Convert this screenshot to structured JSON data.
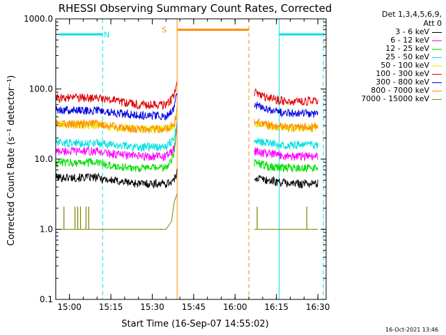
{
  "chart_data": {
    "type": "line",
    "title": "RHESSI Observing Summary Count Rates, Corrected",
    "ylabel": "Corrected Count Rate (s⁻¹ detector⁻¹)",
    "xlabel": "Start Time (16-Sep-07 14:55:02)",
    "y_scale": "log",
    "ylim": [
      0.1,
      1000
    ],
    "xlim": [
      "14:55:02",
      "16:33:00"
    ],
    "y_ticks": [
      {
        "value": 1000,
        "label": "1000.0"
      },
      {
        "value": 100,
        "label": "100.0"
      },
      {
        "value": 10,
        "label": "10.0"
      },
      {
        "value": 1,
        "label": "1.0"
      },
      {
        "value": 0.1,
        "label": "0.1"
      }
    ],
    "x_ticks": [
      {
        "value": "15:00",
        "label": "15:00"
      },
      {
        "value": "15:15",
        "label": "15:15"
      },
      {
        "value": "15:30",
        "label": "15:30"
      },
      {
        "value": "15:45",
        "label": "15:45"
      },
      {
        "value": "16:00",
        "label": "16:00"
      },
      {
        "value": "16:15",
        "label": "16:15"
      },
      {
        "value": "16:30",
        "label": "16:30"
      }
    ],
    "legend_header": [
      "Det 1,3,4,5,6,9,",
      "Att 0"
    ],
    "legend_position": "right",
    "gaps": [
      [
        "15:39",
        "16:07"
      ]
    ],
    "series": [
      {
        "name": "3 - 6 keV",
        "color": "#000000",
        "x": [
          "14:55",
          "15:10",
          "15:15",
          "15:25",
          "15:35",
          "15:38",
          "15:39",
          "16:07",
          "16:12",
          "16:20",
          "16:30"
        ],
        "values": [
          5.5,
          5.5,
          5.0,
          4.5,
          4.5,
          5.0,
          6.5,
          5.5,
          5.0,
          4.5,
          4.5
        ]
      },
      {
        "name": "6 - 12 keV",
        "color": "#ff00ff",
        "x": [
          "14:55",
          "15:10",
          "15:15",
          "15:25",
          "15:35",
          "15:38",
          "15:39",
          "16:07",
          "16:12",
          "16:20",
          "16:30"
        ],
        "values": [
          13,
          13,
          12,
          11,
          11,
          14,
          30,
          13,
          12,
          11,
          11
        ]
      },
      {
        "name": "12 - 25 keV",
        "color": "#00dd00",
        "x": [
          "14:55",
          "15:10",
          "15:15",
          "15:25",
          "15:35",
          "15:38",
          "15:39",
          "16:07",
          "16:12",
          "16:20",
          "16:30"
        ],
        "values": [
          9,
          9,
          8,
          7.5,
          7.5,
          12,
          35,
          9,
          8,
          7.5,
          7.5
        ]
      },
      {
        "name": "25 - 50 keV",
        "color": "#00e0e0",
        "x": [
          "14:55",
          "15:10",
          "15:15",
          "15:25",
          "15:35",
          "15:38",
          "15:39",
          "16:07",
          "16:12",
          "16:20",
          "16:30"
        ],
        "values": [
          17,
          17,
          16,
          15,
          15,
          20,
          40,
          18,
          17,
          16,
          16
        ]
      },
      {
        "name": "50 - 100 keV",
        "color": "#e8e800",
        "x": [
          "14:55",
          "15:10",
          "15:15",
          "15:25",
          "15:35",
          "15:38",
          "15:39",
          "16:07",
          "16:12",
          "16:20",
          "16:30"
        ],
        "values": [
          31,
          31,
          29,
          27,
          27,
          30,
          45,
          33,
          30,
          28,
          28
        ]
      },
      {
        "name": "100 - 300 keV",
        "color": "#e00000",
        "x": [
          "14:55",
          "15:10",
          "15:15",
          "15:25",
          "15:35",
          "15:38",
          "15:39",
          "16:07",
          "16:12",
          "16:20",
          "16:30"
        ],
        "values": [
          75,
          75,
          70,
          60,
          60,
          80,
          130,
          90,
          75,
          65,
          70
        ]
      },
      {
        "name": "300 - 800 keV",
        "color": "#0000e0",
        "x": [
          "14:55",
          "15:10",
          "15:15",
          "15:25",
          "15:35",
          "15:38",
          "15:39",
          "16:07",
          "16:12",
          "16:20",
          "16:30"
        ],
        "values": [
          50,
          50,
          47,
          42,
          42,
          55,
          90,
          60,
          50,
          45,
          45
        ]
      },
      {
        "name": "800 - 7000 keV",
        "color": "#ff8c00",
        "x": [
          "14:55",
          "15:10",
          "15:15",
          "15:25",
          "15:35",
          "15:38",
          "15:39",
          "16:07",
          "16:12",
          "16:20",
          "16:30"
        ],
        "values": [
          32,
          32,
          30,
          27,
          27,
          32,
          50,
          35,
          31,
          28,
          29
        ]
      },
      {
        "name": "7000 - 15000 keV",
        "color": "#808000",
        "x": [
          "14:55",
          "15:10",
          "15:15",
          "15:25",
          "15:35",
          "15:37",
          "15:38",
          "15:39",
          "16:07",
          "16:30"
        ],
        "values": [
          1,
          1,
          1,
          1,
          1,
          1.3,
          2.5,
          3.2,
          1,
          1
        ]
      }
    ],
    "spikes_7000_15000": [
      {
        "x": "14:58",
        "value": 2.1
      },
      {
        "x": "15:02",
        "value": 2.1
      },
      {
        "x": "15:03",
        "value": 2.1
      },
      {
        "x": "15:04",
        "value": 2.1
      },
      {
        "x": "15:06",
        "value": 2.1
      },
      {
        "x": "15:07",
        "value": 2.1
      },
      {
        "x": "16:08",
        "value": 2.1
      },
      {
        "x": "16:26",
        "value": 2.1
      }
    ],
    "flag_bars": [
      {
        "label": "N",
        "color": "#00e0e0",
        "label_x": "15:16",
        "y": 600,
        "segments": [
          [
            "14:56",
            "15:12"
          ],
          [
            "16:16",
            "16:32"
          ]
        ]
      },
      {
        "label": "S",
        "color": "#ff8c00",
        "label_x": "15:37",
        "y": 700,
        "segments": [
          [
            "15:39",
            "16:05"
          ]
        ]
      }
    ],
    "vertical_lines": [
      {
        "x": "14:55",
        "color": "#00e0e0",
        "style": "solid"
      },
      {
        "x": "15:12",
        "color": "#00e0e0",
        "style": "dashed"
      },
      {
        "x": "15:39",
        "color": "#ff8c00",
        "style": "solid"
      },
      {
        "x": "16:05",
        "color": "#ff8c00",
        "style": "dashed"
      },
      {
        "x": "16:16",
        "color": "#00e0e0",
        "style": "solid"
      },
      {
        "x": "16:32",
        "color": "#00e0e0",
        "style": "dashed"
      }
    ]
  },
  "legend": {
    "header_line1": "Det 1,3,4,5,6,9,",
    "header_line2": "Att 0"
  },
  "timestamp": "16-Oct-2021 13:46"
}
